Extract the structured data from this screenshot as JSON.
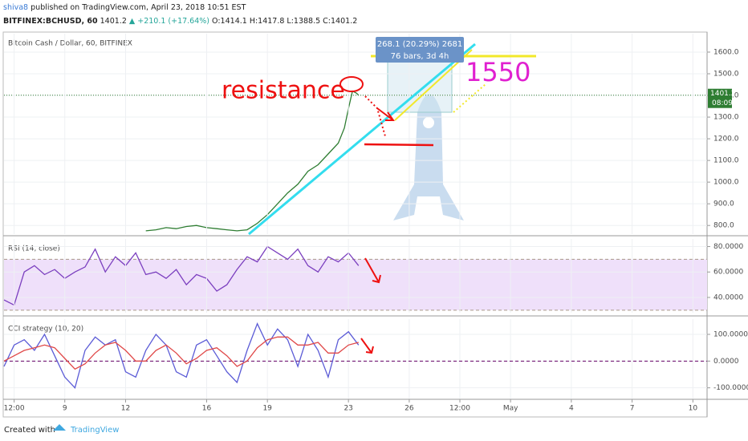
{
  "header": {
    "author": "shiva8",
    "published": "published on TradingView.com, April 23, 2018 10:51 EST",
    "symbol": "BITFINEX:BCHUSD, 60",
    "last": "1401.2",
    "change": "▲ +210.1 (+17.64%)",
    "ohlc": "O:1414.1 H:1417.8 L:1388.5 C:1401.2"
  },
  "chart_data": [
    {
      "type": "line",
      "title": "Bitcoin Cash / Dollar, 60, BITFINEX",
      "xlim": [
        6,
        40.7
      ],
      "ylim": [
        760,
        1685
      ],
      "yticks": [
        {
          "value": 800,
          "label": "800.0"
        },
        {
          "value": 900,
          "label": "900.0"
        },
        {
          "value": 1000,
          "label": "1000.0"
        },
        {
          "value": 1100,
          "label": "1100.0"
        },
        {
          "value": 1200,
          "label": "1200.0"
        },
        {
          "value": 1300,
          "label": "1300.0"
        },
        {
          "value": 1400,
          "label": "1400.0"
        },
        {
          "value": 1500,
          "label": "1500.0"
        },
        {
          "value": 1600,
          "label": "1600.0"
        }
      ],
      "x": [
        13,
        13.5,
        14,
        14.5,
        15,
        15.5,
        16,
        16.5,
        17,
        17.5,
        18,
        18.5,
        19,
        19.5,
        20,
        20.5,
        21,
        21.5,
        22,
        22.5,
        22.8,
        23,
        23.2,
        23.4,
        23.5
      ],
      "series": [
        {
          "color": "#2e7d32",
          "values": [
            775,
            780,
            790,
            785,
            795,
            800,
            790,
            785,
            780,
            775,
            780,
            810,
            850,
            900,
            950,
            990,
            1050,
            1080,
            1130,
            1180,
            1250,
            1340,
            1420,
            1410,
            1401.2
          ]
        }
      ],
      "last_price_label": "1401.2",
      "countdown": "08:09",
      "annotations": {
        "resistance": "resistance",
        "target": "1550",
        "measure": "268.1 (20.29%) 2681",
        "measure_bars": "76 bars, 3d 4h"
      }
    },
    {
      "type": "line",
      "title": "RSI (14, close)",
      "xlim": [
        6,
        40.7
      ],
      "ylim": [
        28,
        86
      ],
      "bands": [
        30,
        70
      ],
      "yticks": [
        {
          "value": 40,
          "label": "40.0000"
        },
        {
          "value": 60,
          "label": "60.0000"
        },
        {
          "value": 80,
          "label": "80.0000"
        }
      ],
      "x": [
        6,
        6.5,
        7,
        7.5,
        8,
        8.5,
        9,
        9.5,
        10,
        10.5,
        11,
        11.5,
        12,
        12.5,
        13,
        13.5,
        14,
        14.5,
        15,
        15.5,
        16,
        16.5,
        17,
        17.5,
        18,
        18.5,
        19,
        19.5,
        20,
        20.5,
        21,
        21.5,
        22,
        22.5,
        23,
        23.5
      ],
      "series": [
        {
          "color": "#7b3fbf",
          "values": [
            38,
            34,
            60,
            65,
            58,
            62,
            55,
            60,
            64,
            78,
            60,
            72,
            65,
            75,
            58,
            60,
            55,
            62,
            50,
            58,
            55,
            45,
            50,
            62,
            72,
            68,
            80,
            75,
            70,
            78,
            65,
            60,
            72,
            68,
            75,
            65
          ]
        }
      ]
    },
    {
      "type": "line",
      "title": "CCI strategy (10, 20)",
      "xlim": [
        6,
        40.7
      ],
      "ylim": [
        -140,
        157
      ],
      "yticks": [
        {
          "value": -100,
          "label": "-100.0000"
        },
        {
          "value": 0,
          "label": "0.0000"
        },
        {
          "value": 100,
          "label": "100.0000"
        }
      ],
      "xticks": [
        {
          "value": 6.5,
          "label": "12:00"
        },
        9,
        12,
        16,
        19,
        23,
        26,
        {
          "value": 28.5,
          "label": "12:00"
        },
        {
          "value": 31,
          "label": "May"
        },
        {
          "value": 34,
          "label": "4"
        },
        {
          "value": 37,
          "label": "7"
        },
        {
          "value": 40,
          "label": "10"
        }
      ],
      "x": [
        6,
        6.5,
        7,
        7.5,
        8,
        8.5,
        9,
        9.5,
        10,
        10.5,
        11,
        11.5,
        12,
        12.5,
        13,
        13.5,
        14,
        14.5,
        15,
        15.5,
        16,
        16.5,
        17,
        17.5,
        18,
        18.5,
        19,
        19.5,
        20,
        20.5,
        21,
        21.5,
        22,
        22.5,
        23,
        23.5
      ],
      "series": [
        {
          "color": "#5b5bd6",
          "values": [
            -20,
            60,
            80,
            40,
            100,
            20,
            -60,
            -100,
            40,
            90,
            60,
            80,
            -40,
            -60,
            40,
            100,
            60,
            -40,
            -60,
            60,
            80,
            20,
            -40,
            -80,
            40,
            140,
            60,
            120,
            80,
            -20,
            100,
            40,
            -60,
            80,
            110,
            60
          ]
        },
        {
          "color": "#e04848",
          "values": [
            0,
            20,
            40,
            50,
            60,
            50,
            10,
            -30,
            -10,
            30,
            60,
            70,
            40,
            0,
            0,
            40,
            60,
            30,
            -10,
            10,
            40,
            50,
            20,
            -20,
            0,
            50,
            80,
            90,
            90,
            60,
            60,
            70,
            30,
            30,
            60,
            70
          ]
        }
      ]
    }
  ],
  "footer": {
    "created": "Created with",
    "brand": "TradingView"
  }
}
